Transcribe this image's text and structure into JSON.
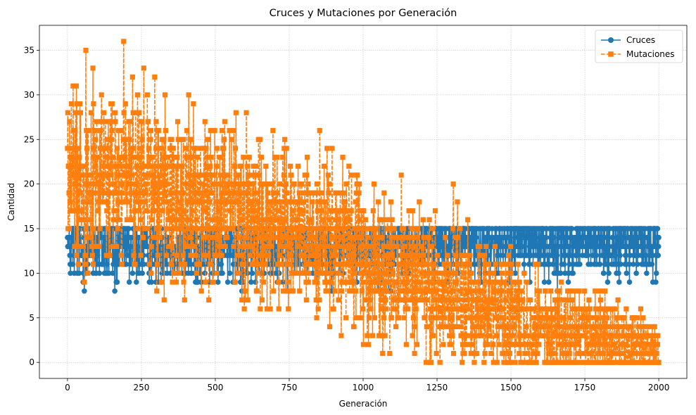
{
  "chart_data": {
    "type": "line",
    "title": "Cruces y Mutaciones por Generación",
    "xlabel": "Generación",
    "ylabel": "Cantidad",
    "xlim": [
      -95,
      2095
    ],
    "ylim": [
      -1.8,
      37.8
    ],
    "xticks": [
      0,
      250,
      500,
      750,
      1000,
      1250,
      1500,
      1750,
      2000
    ],
    "yticks": [
      0,
      5,
      10,
      15,
      20,
      25,
      30,
      35
    ],
    "grid": true,
    "legend_position": "top-right",
    "generations": 2000,
    "series": [
      {
        "name": "Cruces",
        "color": "#1f77b4",
        "marker": "circle",
        "linestyle": "solid",
        "trend": [
          [
            0,
            12.8
          ],
          [
            500,
            13.0
          ],
          [
            1000,
            13.3
          ],
          [
            1500,
            13.5
          ],
          [
            2000,
            13.6
          ]
        ],
        "spread": [
          [
            0,
            2.0
          ],
          [
            2000,
            2.0
          ]
        ],
        "min": 8,
        "max": 15,
        "notable_points": [
          [
            0,
            11
          ],
          [
            0,
            14
          ],
          [
            65,
            10
          ],
          [
            130,
            10
          ],
          [
            160,
            8
          ],
          [
            220,
            10
          ],
          [
            560,
            9
          ],
          [
            1545,
            10
          ],
          [
            1710,
            10
          ],
          [
            1980,
            9
          ],
          [
            2000,
            14
          ]
        ]
      },
      {
        "name": "Mutaciones",
        "color": "#ff7f0e",
        "marker": "square",
        "linestyle": "dashed",
        "trend": [
          [
            0,
            21.0
          ],
          [
            250,
            20.0
          ],
          [
            500,
            17.5
          ],
          [
            750,
            15.0
          ],
          [
            1000,
            12.0
          ],
          [
            1250,
            8.0
          ],
          [
            1500,
            5.0
          ],
          [
            1750,
            2.5
          ],
          [
            2000,
            1.5
          ]
        ],
        "spread": [
          [
            0,
            5.0
          ],
          [
            500,
            5.0
          ],
          [
            1000,
            4.0
          ],
          [
            1500,
            3.5
          ],
          [
            2000,
            1.8
          ]
        ],
        "min": 0,
        "max": 36,
        "notable_points": [
          [
            0,
            27
          ],
          [
            0,
            24
          ],
          [
            62,
            35
          ],
          [
            190,
            36
          ],
          [
            220,
            32
          ],
          [
            270,
            30
          ],
          [
            330,
            30
          ],
          [
            410,
            30
          ],
          [
            570,
            28
          ],
          [
            605,
            28
          ],
          [
            735,
            25
          ],
          [
            980,
            21
          ],
          [
            1230,
            0
          ],
          [
            1305,
            20
          ],
          [
            1690,
            0
          ],
          [
            1735,
            0
          ],
          [
            1830,
            0
          ],
          [
            2000,
            0
          ]
        ]
      }
    ]
  }
}
